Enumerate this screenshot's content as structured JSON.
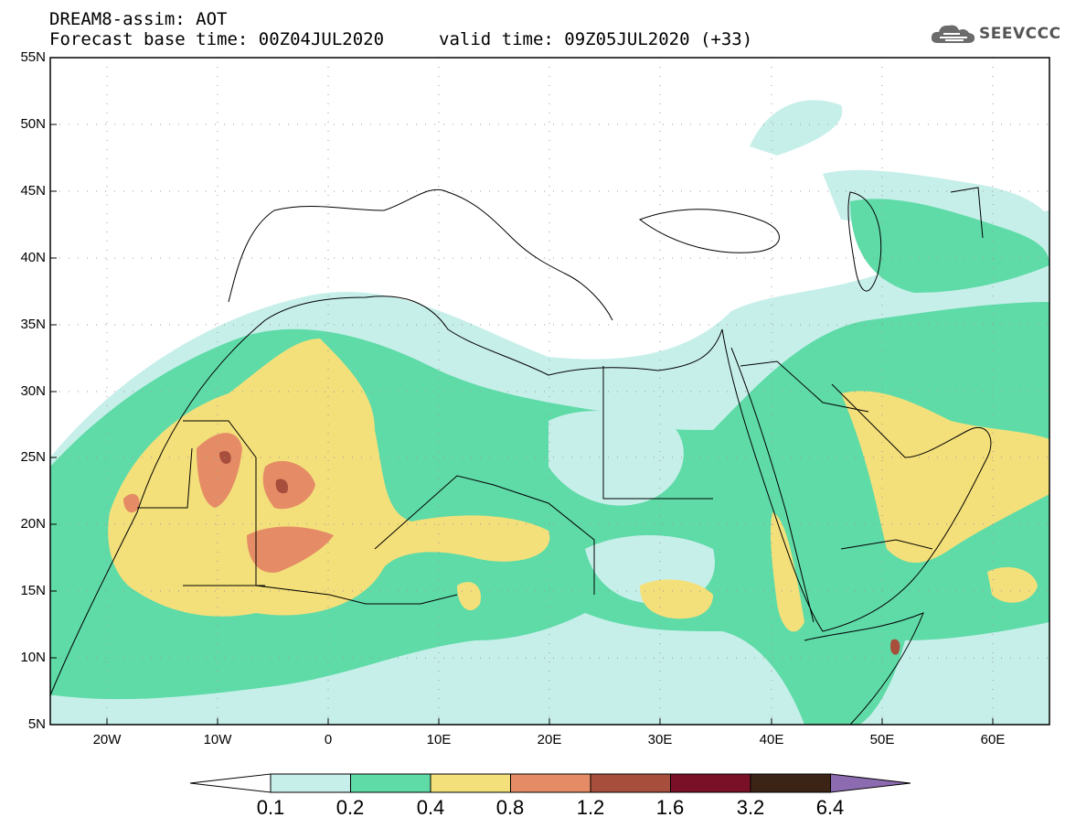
{
  "title": {
    "line1": "DREAM8-assim: AOT",
    "line2": "Forecast base time: 00Z04JUL2020",
    "valid": "valid time: 09Z05JUL2020 (+33)"
  },
  "logo": {
    "text": "SEEVCCC",
    "icon": "cloud-icon"
  },
  "map": {
    "lat_labels": [
      "55N",
      "50N",
      "45N",
      "40N",
      "35N",
      "30N",
      "25N",
      "20N",
      "15N",
      "10N",
      "5N"
    ],
    "lon_labels": [
      "20W",
      "10W",
      "0",
      "10E",
      "20E",
      "30E",
      "40E",
      "50E",
      "60E"
    ],
    "lat_range": [
      5,
      55
    ],
    "lon_range": [
      -25,
      65
    ]
  },
  "colorbar": {
    "labels": [
      "0.1",
      "0.2",
      "0.4",
      "0.8",
      "1.2",
      "1.6",
      "3.2",
      "6.4"
    ],
    "colors": [
      "#c7efea",
      "#5fdba8",
      "#f4e07a",
      "#e58c66",
      "#a84e3c",
      "#7a1027",
      "#3b2416",
      "#8c6bb0"
    ]
  }
}
